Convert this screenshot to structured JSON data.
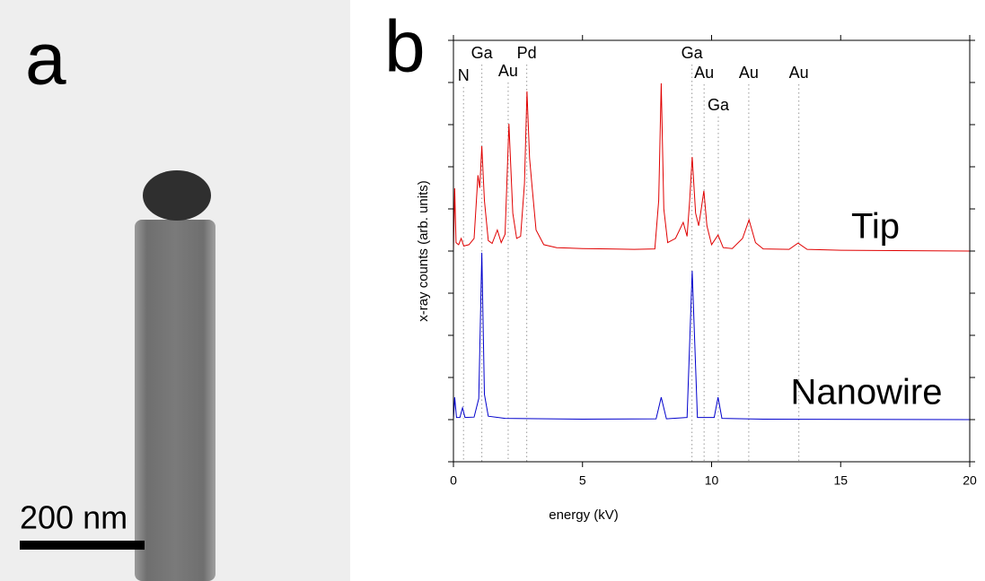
{
  "panel_a": {
    "label": "a",
    "scale_bar": "200 nm"
  },
  "chart_data": {
    "type": "line",
    "panel_label": "b",
    "xlabel": "energy (kV)",
    "ylabel": "x-ray counts (arb. units)",
    "xlim": [
      0,
      20
    ],
    "xticks": [
      0,
      5,
      10,
      15,
      20
    ],
    "ylim": [
      0,
      10
    ],
    "yticks": [
      0,
      1,
      2,
      3,
      4,
      5,
      6,
      7,
      8,
      9,
      10
    ],
    "annotations": [
      {
        "text": "N",
        "x": 0.39
      },
      {
        "text": "Ga",
        "x": 1.1
      },
      {
        "text": "Au",
        "x": 2.12
      },
      {
        "text": "Pd",
        "x": 2.84
      },
      {
        "text": "Ga",
        "x": 9.24
      },
      {
        "text": "Au",
        "x": 9.71
      },
      {
        "text": "Au",
        "x": 11.44
      },
      {
        "text": "Ga",
        "x": 10.26
      },
      {
        "text": "Au",
        "x": 13.38
      }
    ],
    "series": [
      {
        "name": "Tip",
        "color": "#e00000",
        "x": [
          0,
          0.05,
          0.1,
          0.2,
          0.3,
          0.4,
          0.6,
          0.8,
          0.95,
          1.02,
          1.1,
          1.2,
          1.35,
          1.5,
          1.7,
          1.85,
          2.0,
          2.15,
          2.3,
          2.45,
          2.6,
          2.75,
          2.85,
          2.95,
          3.05,
          3.2,
          3.5,
          4,
          5,
          6,
          7,
          7.8,
          7.95,
          8.05,
          8.15,
          8.3,
          8.6,
          8.9,
          9.05,
          9.15,
          9.25,
          9.38,
          9.5,
          9.6,
          9.7,
          9.82,
          10.0,
          10.25,
          10.45,
          10.8,
          11.2,
          11.45,
          11.7,
          12.0,
          13.0,
          13.35,
          13.7,
          15,
          20
        ],
        "values": [
          5.0,
          6.49,
          5.2,
          5.15,
          5.3,
          5.12,
          5.15,
          5.3,
          6.8,
          6.5,
          7.49,
          6.2,
          5.25,
          5.18,
          5.5,
          5.2,
          5.4,
          8.02,
          5.9,
          5.3,
          5.35,
          6.6,
          8.79,
          7.2,
          6.5,
          5.5,
          5.15,
          5.08,
          5.06,
          5.05,
          5.04,
          5.05,
          6.2,
          8.98,
          6.0,
          5.2,
          5.3,
          5.68,
          5.35,
          6.2,
          7.23,
          5.9,
          5.6,
          6.0,
          6.43,
          5.6,
          5.15,
          5.38,
          5.08,
          5.06,
          5.3,
          5.74,
          5.2,
          5.05,
          5.04,
          5.19,
          5.04,
          5.02,
          5.0
        ]
      },
      {
        "name": "Nanowire",
        "color": "#0000cc",
        "x": [
          0,
          0.05,
          0.12,
          0.25,
          0.35,
          0.45,
          0.8,
          0.98,
          1.1,
          1.2,
          1.35,
          2,
          5,
          7.85,
          8.05,
          8.25,
          9.05,
          9.25,
          9.45,
          10.1,
          10.25,
          10.4,
          12,
          20
        ],
        "values": [
          1.0,
          1.53,
          1.05,
          1.05,
          1.28,
          1.05,
          1.06,
          1.5,
          4.96,
          1.6,
          1.08,
          1.03,
          1.01,
          1.02,
          1.53,
          1.02,
          1.05,
          4.53,
          1.05,
          1.05,
          1.53,
          1.03,
          1.01,
          1.0
        ]
      }
    ]
  }
}
